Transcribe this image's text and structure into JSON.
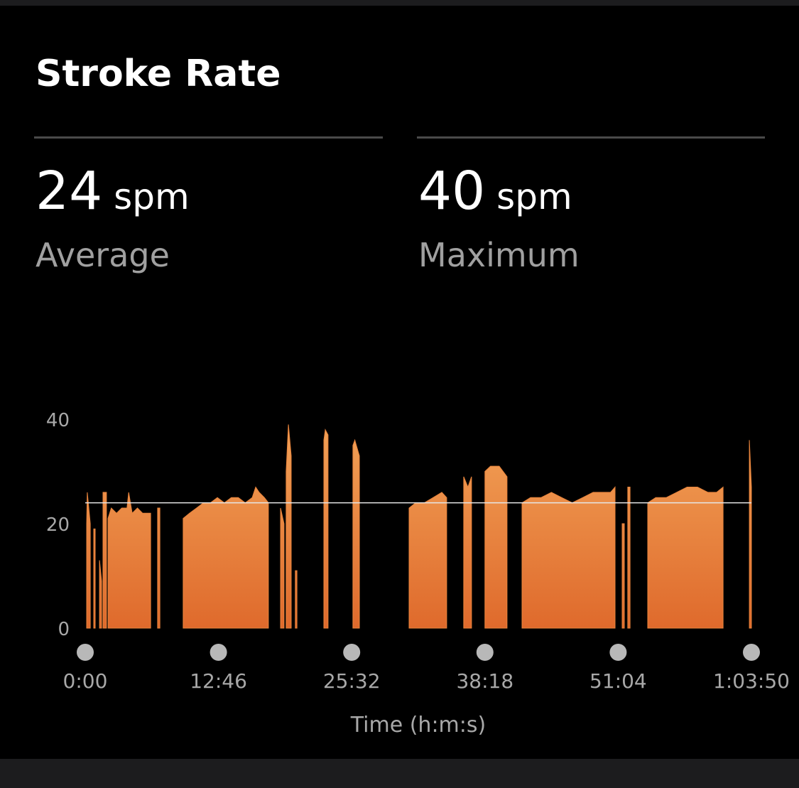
{
  "header": {
    "title": "Stroke Rate"
  },
  "stats": [
    {
      "value": 24,
      "unit": "spm",
      "label": "Average"
    },
    {
      "value": 40,
      "unit": "spm",
      "label": "Maximum"
    }
  ],
  "chart_data": {
    "type": "area",
    "x_label": "Time (h:m:s)",
    "color": "#e8843c",
    "xlim": [
      0,
      3830
    ],
    "xticks": [
      {
        "value": 0,
        "label": "0:00"
      },
      {
        "value": 766,
        "label": "12:46"
      },
      {
        "value": 1532,
        "label": "25:32"
      },
      {
        "value": 2298,
        "label": "38:18"
      },
      {
        "value": 3064,
        "label": "51:04"
      },
      {
        "value": 3830,
        "label": "1:03:50"
      }
    ],
    "ylim": [
      0,
      40
    ],
    "yticks": [
      0,
      20,
      40
    ],
    "x": [
      8,
      12,
      29,
      null,
      49,
      57,
      null,
      82,
      94,
      null,
      102,
      122,
      null,
      131,
      150,
      180,
      210,
      240,
      250,
      270,
      300,
      330,
      360,
      376,
      null,
      416,
      429,
      null,
      563,
      600,
      640,
      680,
      720,
      760,
      800,
      840,
      880,
      920,
      960,
      980,
      1000,
      1030,
      1053,
      null,
      1123,
      1143,
      null,
      1155,
      1168,
      1184,
      null,
      1208,
      1217,
      null,
      1372,
      1380,
      1396,
      null,
      1539,
      1550,
      1576,
      null,
      1862,
      1900,
      1950,
      2000,
      2050,
      2078,
      null,
      2176,
      2200,
      2221,
      null,
      2298,
      2330,
      2380,
      2425,
      null,
      2511,
      2560,
      2620,
      2680,
      2740,
      2800,
      2860,
      2920,
      2980,
      3020,
      3046,
      null,
      3087,
      3099,
      null,
      3119,
      3132,
      null,
      3234,
      3280,
      3340,
      3400,
      3460,
      3520,
      3580,
      3630,
      3667,
      null,
      3818,
      3830
    ],
    "values": [
      20,
      26,
      20,
      null,
      19,
      19,
      null,
      13,
      9,
      null,
      26,
      26,
      null,
      21,
      23,
      22,
      23,
      23,
      26,
      22,
      23,
      22,
      22,
      22,
      null,
      23,
      23,
      null,
      21,
      22,
      23,
      24,
      24,
      25,
      24,
      25,
      25,
      24,
      25,
      27,
      26,
      25,
      24,
      null,
      23,
      20,
      null,
      30,
      39,
      33,
      null,
      11,
      11,
      null,
      36,
      38,
      37,
      null,
      35,
      36,
      33,
      null,
      23,
      24,
      24,
      25,
      26,
      25,
      null,
      29,
      27,
      29,
      null,
      30,
      31,
      31,
      29,
      null,
      24,
      25,
      25,
      26,
      25,
      24,
      25,
      26,
      26,
      26,
      27,
      null,
      20,
      20,
      null,
      27,
      27,
      null,
      24,
      25,
      25,
      26,
      27,
      27,
      26,
      26,
      27,
      null,
      36,
      27
    ]
  }
}
